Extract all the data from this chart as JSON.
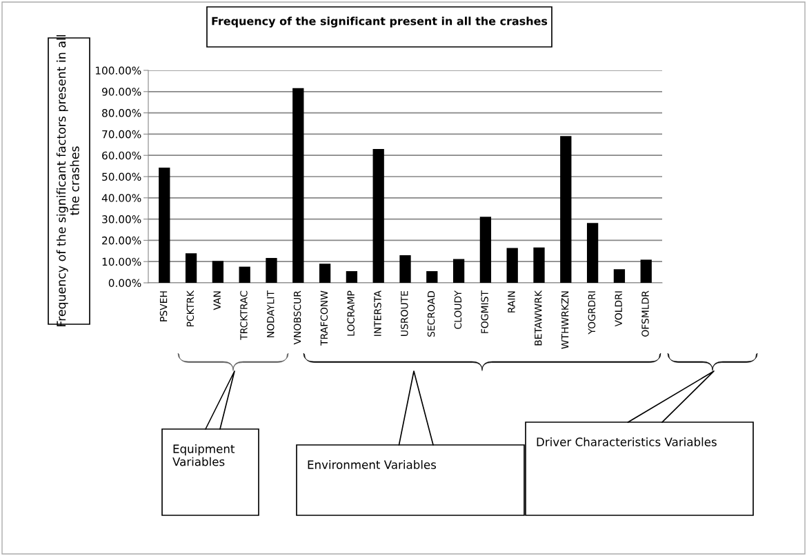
{
  "chart_data": {
    "type": "bar",
    "title": "Frequency of the significant present in all the crashes",
    "ylabel": "Frequency of the significant factors present in all the crashes",
    "categories": [
      "PSVEH",
      "PCKTRK",
      "VAN",
      "TRCKTRAC",
      "NODAYLIT",
      "VNOBSCUR",
      "TRAFCONW",
      "LOCRAMP",
      "INTERSTA",
      "USROUTE",
      "SECROAD",
      "CLOUDY",
      "FOGMIST",
      "RAIN",
      "BETAWWRK",
      "WTHWRKZN",
      "YOGRDRI",
      "VOLDRI",
      "OFSMLDR"
    ],
    "values": [
      54.2,
      13.9,
      10.3,
      7.6,
      11.7,
      91.6,
      9.0,
      5.5,
      63.0,
      13.0,
      5.5,
      11.2,
      31.1,
      16.4,
      16.6,
      69.1,
      28.2,
      6.4,
      10.9
    ],
    "color": "#000000",
    "ylim": [
      0,
      100
    ],
    "yticks": [
      {
        "value": 0,
        "label": "0.00%"
      },
      {
        "value": 10,
        "label": "10.00%"
      },
      {
        "value": 20,
        "label": "20.00%"
      },
      {
        "value": 30,
        "label": "30.00%"
      },
      {
        "value": 40,
        "label": "40.00%"
      },
      {
        "value": 50,
        "label": "50.00%"
      },
      {
        "value": 60,
        "label": "60.00%"
      },
      {
        "value": 70,
        "label": "70.00%"
      },
      {
        "value": 80,
        "label": "80.00%"
      },
      {
        "value": 90,
        "label": "90.00%"
      },
      {
        "value": 100,
        "label": "100.00%"
      }
    ],
    "grid": "y",
    "legend": false,
    "annotations": [
      "Equipment Variables",
      "Environment Variables",
      "Driver Characteristics Variables"
    ]
  }
}
